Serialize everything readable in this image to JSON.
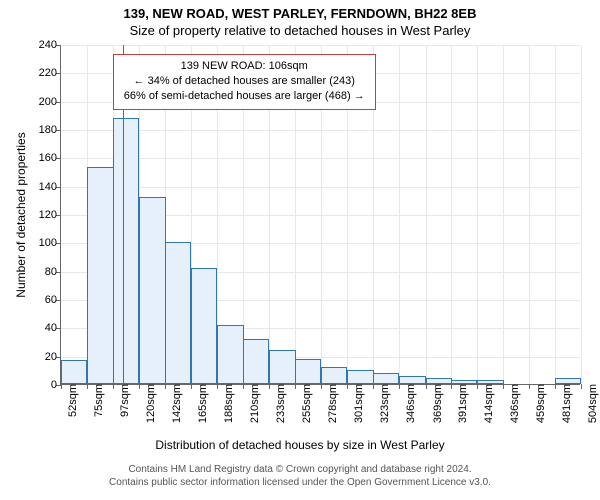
{
  "title_main": "139, NEW ROAD, WEST PARLEY, FERNDOWN, BH22 8EB",
  "title_sub": "Size of property relative to detached houses in West Parley",
  "ylabel": "Number of detached properties",
  "xlabel": "Distribution of detached houses by size in West Parley",
  "attribution_line1": "Contains HM Land Registry data © Crown copyright and database right 2024.",
  "attribution_line2": "Contains public sector information licensed under the Open Government Licence v3.0.",
  "chart": {
    "type": "histogram",
    "background_color": "#ffffff",
    "grid_color": "#e8e8e8",
    "axis_color": "#666666",
    "bar_fill": "#e6f0fa",
    "bar_border": "#3076b2",
    "callout_border": "#c04040",
    "refline_color": "#c04040",
    "ylim": [
      0,
      240
    ],
    "yticks": [
      0,
      20,
      40,
      60,
      80,
      100,
      120,
      140,
      160,
      180,
      200,
      220,
      240
    ],
    "xticks": [
      52,
      75,
      97,
      120,
      142,
      165,
      188,
      210,
      233,
      255,
      278,
      301,
      323,
      346,
      369,
      391,
      414,
      436,
      459,
      481,
      504
    ],
    "xtick_suffix": "sqm",
    "bar_width_ratio": 1.0,
    "bars": [
      {
        "x": 52,
        "h": 17
      },
      {
        "x": 75,
        "h": 153
      },
      {
        "x": 97,
        "h": 188
      },
      {
        "x": 120,
        "h": 132
      },
      {
        "x": 142,
        "h": 100
      },
      {
        "x": 165,
        "h": 82
      },
      {
        "x": 188,
        "h": 42
      },
      {
        "x": 210,
        "h": 32
      },
      {
        "x": 233,
        "h": 24
      },
      {
        "x": 255,
        "h": 18
      },
      {
        "x": 278,
        "h": 12
      },
      {
        "x": 301,
        "h": 10
      },
      {
        "x": 323,
        "h": 8
      },
      {
        "x": 346,
        "h": 6
      },
      {
        "x": 369,
        "h": 4
      },
      {
        "x": 391,
        "h": 3
      },
      {
        "x": 414,
        "h": 3
      },
      {
        "x": 436,
        "h": 0
      },
      {
        "x": 459,
        "h": 0
      },
      {
        "x": 481,
        "h": 4
      }
    ],
    "ref_value": 106,
    "callout": {
      "line1": "139 NEW ROAD: 106sqm",
      "line2": "← 34% of detached houses are smaller (243)",
      "line3": "66% of semi-detached houses are larger (468) →",
      "top_val": 234,
      "left_val": 97
    }
  }
}
